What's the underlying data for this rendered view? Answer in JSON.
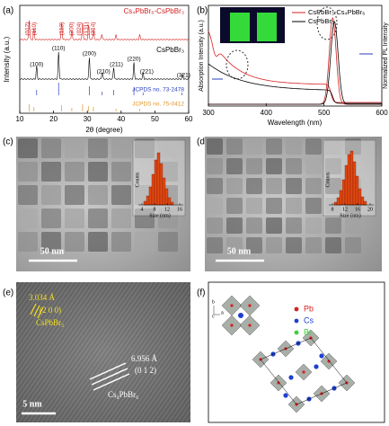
{
  "panels": {
    "a": {
      "label": "(a)",
      "x_label": "2θ (degree)",
      "y_label": "Intensity (a.u.)",
      "xlim": [
        10,
        60
      ],
      "xticks": [
        10,
        20,
        30,
        40,
        50,
        60
      ],
      "series": [
        {
          "name": "Cs₄PbBr₆-CsPbBr₃",
          "color": "#d62020",
          "peak_labels": [
            "(012)",
            "(110)",
            "(113)",
            "(300)",
            "(024)",
            "(131)",
            "(214)"
          ]
        },
        {
          "name": "CsPbBr₃",
          "color": "#000000",
          "peak_labels": [
            "(100)",
            "(110)",
            "(200)",
            "(210)",
            "(211)",
            "(220)",
            "(221)",
            "(321)"
          ]
        }
      ],
      "references": [
        {
          "name": "JCPDS no. 73-2478",
          "color": "#2a3fbf"
        },
        {
          "name": "JCPDS no. 75-0412",
          "color": "#e0952a"
        }
      ]
    },
    "b": {
      "label": "(b)",
      "x_label": "Wavelength (nm)",
      "y_label": "Absorption Intensity (a.u.)",
      "y2_label": "Normalized PL Intensity",
      "xlim": [
        300,
        600
      ],
      "xticks": [
        300,
        400,
        500,
        600
      ],
      "legend": [
        {
          "name": "CsPbBr₃-Cs₄PbBr₆",
          "color": "#d62020"
        },
        {
          "name": "CsPbBr₃",
          "color": "#000000"
        }
      ]
    },
    "c": {
      "label": "(c)",
      "scale_bar": "50 nm",
      "inset_y_label": "Counts",
      "inset_x_label": "Size (nm)",
      "inset_xticks": [
        4,
        8,
        12,
        16
      ]
    },
    "d": {
      "label": "(d)",
      "scale_bar": "50 nm",
      "inset_y_label": "Counts",
      "inset_x_label": "Size (nm)",
      "inset_xticks": [
        8,
        12,
        16,
        20
      ]
    },
    "e": {
      "label": "(e)",
      "d1": "3.034 Å",
      "plane1": "(2 0 0)",
      "phase1": "CsPbBr₃",
      "d2": "6.956 Å",
      "plane2": "(0 1 2)",
      "phase2": "Cs₄PbBr₆",
      "scale_bar": "5 nm"
    },
    "f": {
      "label": "(f)",
      "legend": [
        {
          "name": "Pb",
          "color": "#d62020"
        },
        {
          "name": "Cs",
          "color": "#1f3fcf"
        },
        {
          "name": "Br",
          "color": "#3ccf3c"
        }
      ],
      "axes": [
        "b",
        "a",
        "c"
      ]
    }
  }
}
